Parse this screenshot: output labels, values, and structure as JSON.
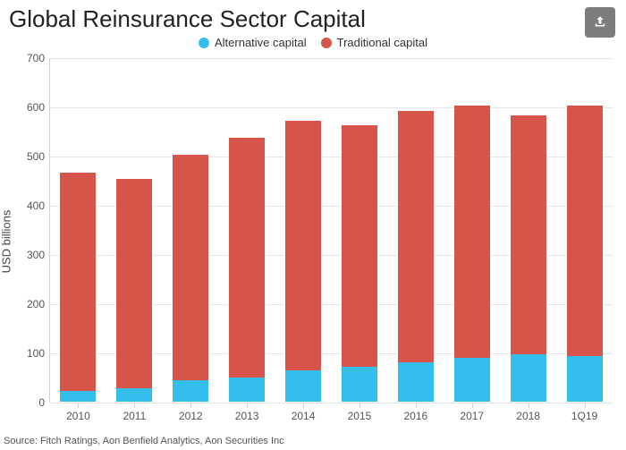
{
  "title": "Global Reinsurance Sector Capital",
  "source": "Source: Fitch Ratings, Aon Benfield Analytics, Aon Securities Inc",
  "chart": {
    "type": "stacked-bar",
    "ylabel": "USD billions",
    "ylim": [
      0,
      700
    ],
    "ytick_step": 100,
    "background_color": "#ffffff",
    "grid_color": "#e3e5e8",
    "axis_color": "#d0d3d6",
    "tick_font_size": 12,
    "label_font_size": 13,
    "title_font_size": 26,
    "bar_width_ratio": 0.65,
    "categories": [
      "2010",
      "2011",
      "2012",
      "2013",
      "2014",
      "2015",
      "2016",
      "2017",
      "2018",
      "1Q19"
    ],
    "series": [
      {
        "name": "Alternative capital",
        "color": "#33beec",
        "values": [
          22,
          28,
          44,
          50,
          64,
          72,
          81,
          89,
          97,
          93
        ]
      },
      {
        "name": "Traditional capital",
        "color": "#d65449",
        "values": [
          448,
          428,
          461,
          490,
          511,
          493,
          514,
          516,
          488,
          512
        ]
      }
    ]
  }
}
